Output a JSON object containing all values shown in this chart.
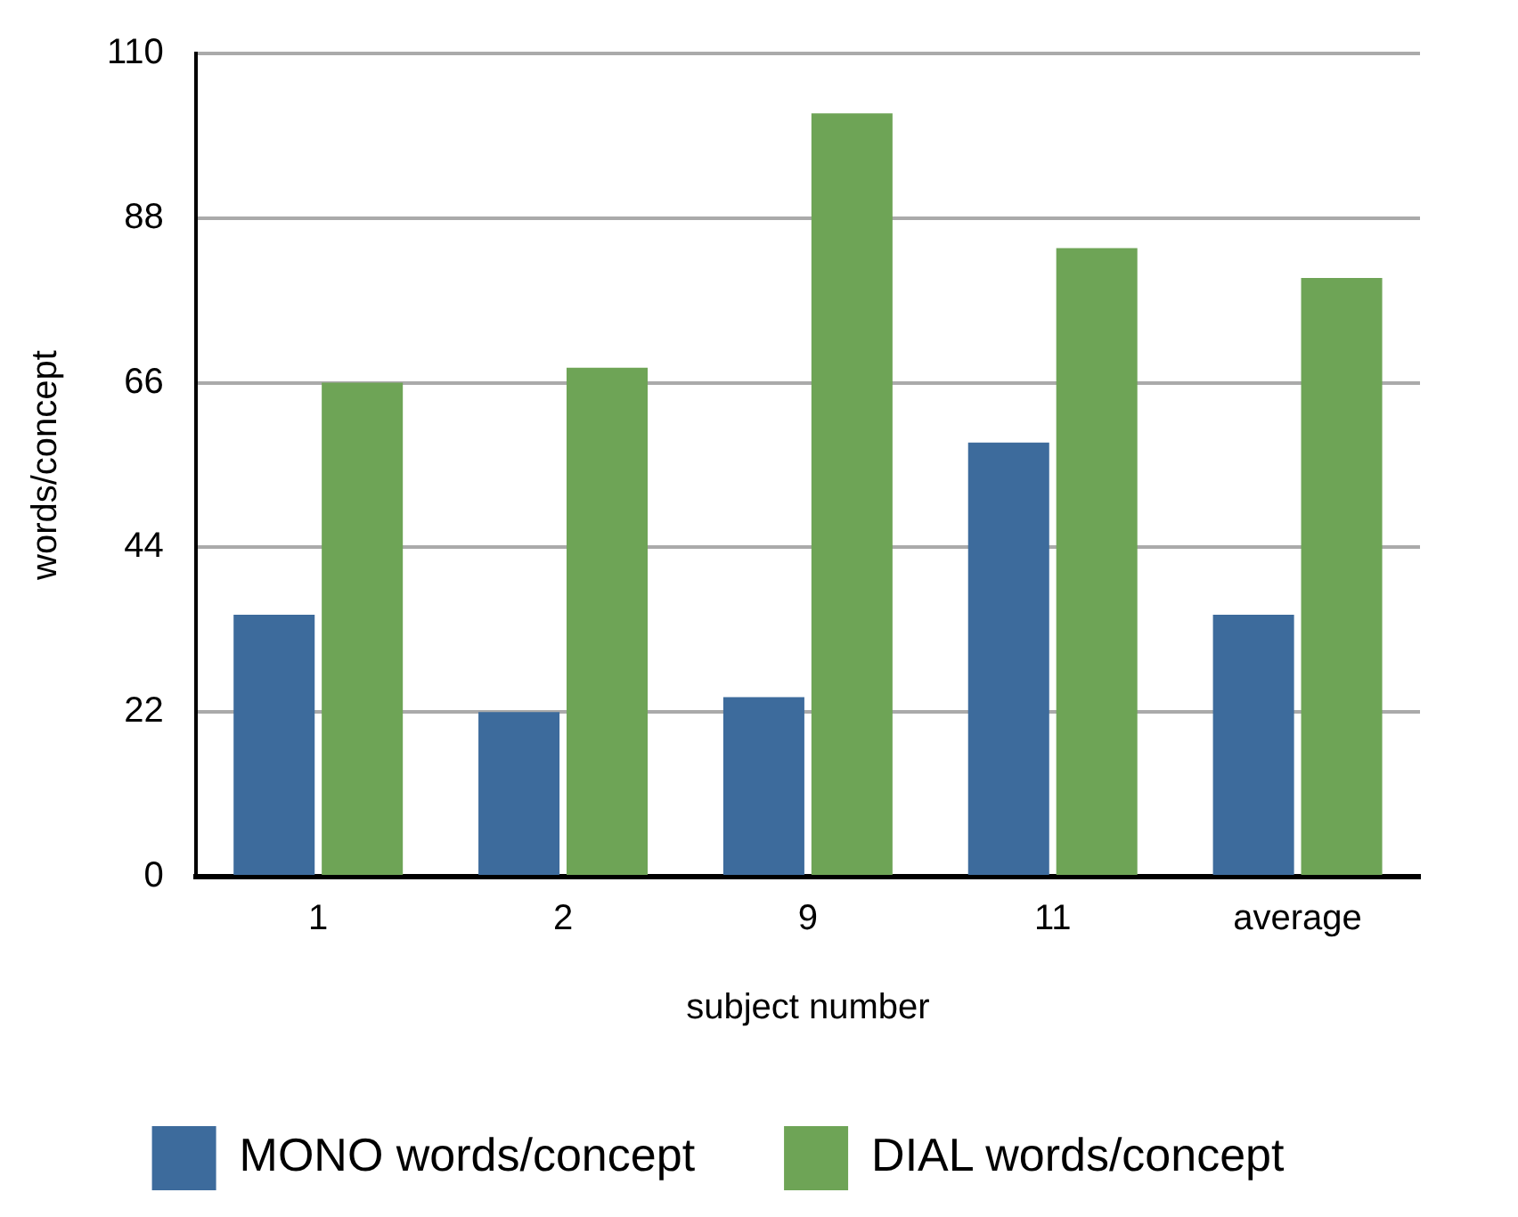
{
  "chart_data": {
    "type": "bar",
    "xlabel": "subject number",
    "ylabel": "words/concept",
    "categories": [
      "1",
      "2",
      "9",
      "11",
      "average"
    ],
    "series": [
      {
        "name": "MONO words/concept",
        "color": "#3d6b9c",
        "values": [
          35,
          22,
          24,
          58,
          35
        ]
      },
      {
        "name": "DIAL words/concept",
        "color": "#6ea456",
        "values": [
          66,
          68,
          102,
          84,
          80
        ]
      }
    ],
    "ylim": [
      0,
      110
    ],
    "yticks": [
      0,
      22,
      44,
      66,
      88,
      110
    ],
    "grid": "y",
    "legend": "bottom"
  }
}
